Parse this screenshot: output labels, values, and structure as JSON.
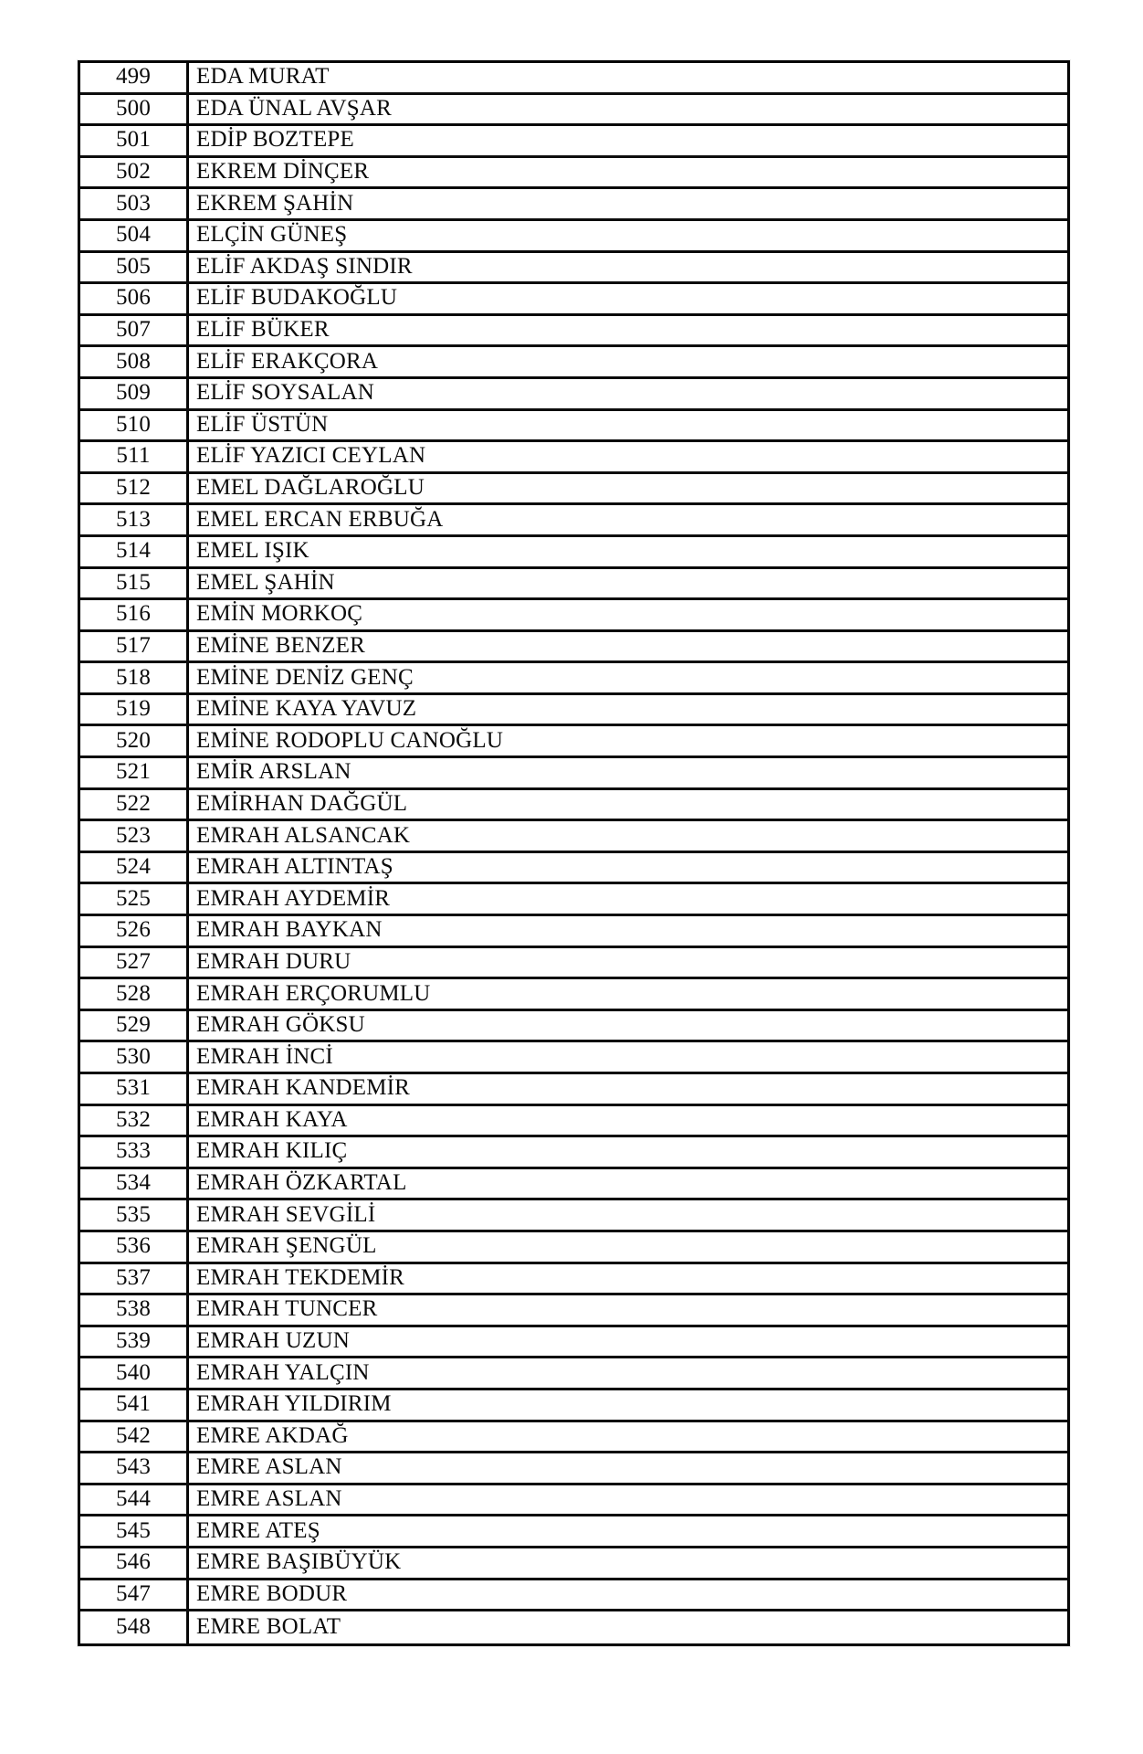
{
  "page": {
    "kind": "scanned-name-list",
    "background_color": "#ffffff",
    "ink_color": "#0b0b0b",
    "first_row_number": "499",
    "last_row_number": "548"
  },
  "table": {
    "columns": [
      "row_number",
      "full_name"
    ],
    "rows": [
      {
        "no": "499",
        "name": "EDA MURAT"
      },
      {
        "no": "500",
        "name": "EDA ÜNAL AVŞAR"
      },
      {
        "no": "501",
        "name": "EDİP BOZTEPE"
      },
      {
        "no": "502",
        "name": "EKREM DİNÇER"
      },
      {
        "no": "503",
        "name": "EKREM ŞAHİN"
      },
      {
        "no": "504",
        "name": "ELÇİN GÜNEŞ"
      },
      {
        "no": "505",
        "name": "ELİF AKDAŞ SINDIR"
      },
      {
        "no": "506",
        "name": "ELİF BUDAKOĞLU"
      },
      {
        "no": "507",
        "name": "ELİF BÜKER"
      },
      {
        "no": "508",
        "name": "ELİF ERAKÇORA"
      },
      {
        "no": "509",
        "name": "ELİF SOYSALAN"
      },
      {
        "no": "510",
        "name": "ELİF ÜSTÜN"
      },
      {
        "no": "511",
        "name": "ELİF YAZICI CEYLAN"
      },
      {
        "no": "512",
        "name": "EMEL DAĞLAROĞLU"
      },
      {
        "no": "513",
        "name": "EMEL ERCAN ERBUĞA"
      },
      {
        "no": "514",
        "name": "EMEL IŞIK"
      },
      {
        "no": "515",
        "name": "EMEL ŞAHİN"
      },
      {
        "no": "516",
        "name": "EMİN MORKOÇ"
      },
      {
        "no": "517",
        "name": "EMİNE BENZER"
      },
      {
        "no": "518",
        "name": "EMİNE DENİZ GENÇ"
      },
      {
        "no": "519",
        "name": "EMİNE KAYA YAVUZ"
      },
      {
        "no": "520",
        "name": "EMİNE RODOPLU CANOĞLU"
      },
      {
        "no": "521",
        "name": "EMİR ARSLAN"
      },
      {
        "no": "522",
        "name": "EMİRHAN DAĞGÜL"
      },
      {
        "no": "523",
        "name": "EMRAH ALSANCAK"
      },
      {
        "no": "524",
        "name": "EMRAH ALTINTAŞ"
      },
      {
        "no": "525",
        "name": "EMRAH AYDEMİR"
      },
      {
        "no": "526",
        "name": "EMRAH BAYKAN"
      },
      {
        "no": "527",
        "name": "EMRAH DURU"
      },
      {
        "no": "528",
        "name": "EMRAH ERÇORUMLU"
      },
      {
        "no": "529",
        "name": "EMRAH GÖKSU"
      },
      {
        "no": "530",
        "name": "EMRAH İNCİ"
      },
      {
        "no": "531",
        "name": "EMRAH KANDEMİR"
      },
      {
        "no": "532",
        "name": "EMRAH KAYA"
      },
      {
        "no": "533",
        "name": "EMRAH KILIÇ"
      },
      {
        "no": "534",
        "name": "EMRAH ÖZKARTAL"
      },
      {
        "no": "535",
        "name": "EMRAH SEVGİLİ"
      },
      {
        "no": "536",
        "name": "EMRAH ŞENGÜL"
      },
      {
        "no": "537",
        "name": "EMRAH TEKDEMİR"
      },
      {
        "no": "538",
        "name": "EMRAH TUNCER"
      },
      {
        "no": "539",
        "name": "EMRAH UZUN"
      },
      {
        "no": "540",
        "name": "EMRAH YALÇIN"
      },
      {
        "no": "541",
        "name": "EMRAH YILDIRIM"
      },
      {
        "no": "542",
        "name": "EMRE AKDAĞ"
      },
      {
        "no": "543",
        "name": "EMRE ASLAN"
      },
      {
        "no": "544",
        "name": "EMRE ASLAN"
      },
      {
        "no": "545",
        "name": "EMRE ATEŞ"
      },
      {
        "no": "546",
        "name": "EMRE BAŞIBÜYÜK"
      },
      {
        "no": "547",
        "name": "EMRE BODUR"
      },
      {
        "no": "548",
        "name": "EMRE BOLAT"
      }
    ]
  }
}
